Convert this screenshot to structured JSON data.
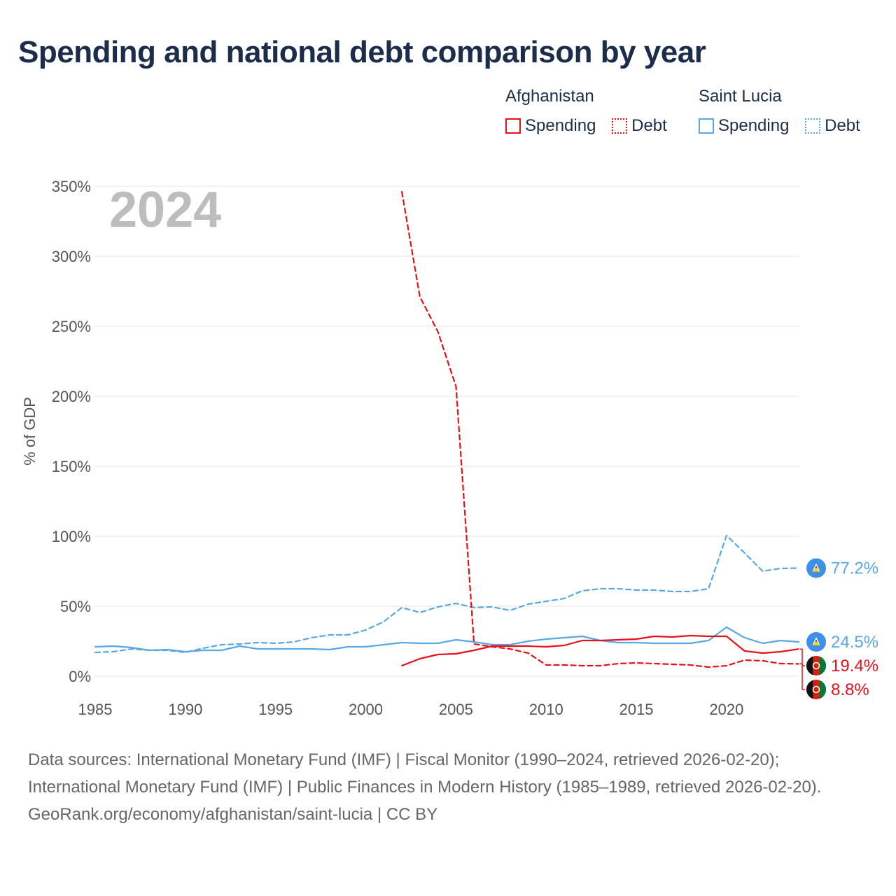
{
  "title": "Spending and national debt comparison by year",
  "legend": [
    {
      "country": "Afghanistan",
      "color": "#e8101b",
      "items": [
        {
          "label": "Spending",
          "style": "solid"
        },
        {
          "label": "Debt",
          "style": "dotted"
        }
      ]
    },
    {
      "country": "Saint Lucia",
      "color": "#5aa7e6",
      "items": [
        {
          "label": "Spending",
          "style": "solid"
        },
        {
          "label": "Debt",
          "style": "dotted"
        }
      ]
    }
  ],
  "chart_data": {
    "type": "line",
    "title": "Spending and national debt comparison by year",
    "year_watermark": "2024",
    "xlabel": "",
    "ylabel": "% of GDP",
    "xlim": [
      1985,
      2024
    ],
    "ylim": [
      0,
      350
    ],
    "x_ticks": [
      1985,
      1990,
      1995,
      2000,
      2005,
      2010,
      2015,
      2020
    ],
    "y_ticks": [
      0,
      50,
      100,
      150,
      200,
      250,
      300,
      350
    ],
    "y_tick_labels": [
      "0%",
      "50%",
      "100%",
      "150%",
      "200%",
      "250%",
      "300%",
      "350%"
    ],
    "series": [
      {
        "name": "Saint Lucia Debt",
        "color": "#5aa7e6",
        "dashed": true,
        "x": [
          1985,
          1986,
          1987,
          1988,
          1989,
          1990,
          1991,
          1992,
          1993,
          1994,
          1995,
          1996,
          1997,
          1998,
          1999,
          2000,
          2001,
          2002,
          2003,
          2004,
          2005,
          2006,
          2007,
          2008,
          2009,
          2010,
          2011,
          2012,
          2013,
          2014,
          2015,
          2016,
          2017,
          2018,
          2019,
          2020,
          2021,
          2022,
          2023,
          2024
        ],
        "values": [
          17,
          17.5,
          19.5,
          18.5,
          18.5,
          17,
          20,
          22.5,
          23,
          24,
          23.5,
          24.5,
          27.5,
          29.5,
          29.5,
          33,
          39,
          49,
          45.5,
          49.5,
          52,
          49,
          49.5,
          47,
          51.5,
          53.5,
          55.5,
          61,
          62.5,
          62.5,
          61.5,
          61.5,
          60.5,
          60.5,
          62.5,
          100.5,
          88,
          75,
          77,
          77.2
        ],
        "end_label": "77.2%"
      },
      {
        "name": "Saint Lucia Spending",
        "color": "#5aa7e6",
        "dashed": false,
        "x": [
          1985,
          1986,
          1987,
          1988,
          1989,
          1990,
          1991,
          1992,
          1993,
          1994,
          1995,
          1996,
          1997,
          1998,
          1999,
          2000,
          2001,
          2002,
          2003,
          2004,
          2005,
          2006,
          2007,
          2008,
          2009,
          2010,
          2011,
          2012,
          2013,
          2014,
          2015,
          2016,
          2017,
          2018,
          2019,
          2020,
          2021,
          2022,
          2023,
          2024
        ],
        "values": [
          21,
          21.5,
          20.5,
          18.5,
          19,
          17.5,
          18.5,
          18.5,
          21.5,
          19.5,
          19.5,
          19.5,
          19.5,
          19,
          21,
          21,
          22.5,
          24,
          23.5,
          23.5,
          26,
          24.5,
          22.5,
          22.5,
          25,
          26.5,
          27.5,
          28.5,
          25.5,
          24,
          24,
          23.5,
          23.5,
          23.5,
          25.5,
          35,
          27.5,
          23.5,
          25.5,
          24.5
        ],
        "end_label": "24.5%"
      },
      {
        "name": "Afghanistan Spending",
        "color": "#e8101b",
        "dashed": false,
        "x": [
          2002,
          2003,
          2004,
          2005,
          2006,
          2007,
          2008,
          2009,
          2010,
          2011,
          2012,
          2013,
          2014,
          2015,
          2016,
          2017,
          2018,
          2019,
          2020,
          2021,
          2022,
          2023,
          2024
        ],
        "values": [
          7.5,
          12.5,
          15.5,
          16,
          18.5,
          21.5,
          21.5,
          21.5,
          21,
          22,
          25.5,
          25.5,
          26,
          26.5,
          28.5,
          28,
          29,
          28.5,
          28.5,
          18,
          16.5,
          17.5,
          19.4
        ],
        "end_label": "19.4%"
      },
      {
        "name": "Afghanistan Debt",
        "color": "#e8101b",
        "dashed": true,
        "x": [
          2002,
          2003,
          2004,
          2005,
          2006,
          2007,
          2008,
          2009,
          2010,
          2011,
          2012,
          2013,
          2014,
          2015,
          2016,
          2017,
          2018,
          2019,
          2020,
          2021,
          2022,
          2023,
          2024
        ],
        "values": [
          346,
          271,
          246,
          207,
          23,
          21,
          19.5,
          16.5,
          8,
          8,
          7.5,
          7.5,
          9,
          9.5,
          9,
          8.5,
          8,
          6.5,
          7.5,
          11.5,
          11,
          9,
          8.8
        ],
        "end_label": "8.8%"
      }
    ]
  },
  "footer": {
    "sources": "Data sources: International Monetary Fund (IMF) | Fiscal Monitor (1990–2024, retrieved 2026-02-20); International Monetary Fund (IMF) | Public Finances in Modern History (1985–1989, retrieved 2026-02-20).",
    "attribution": "GeoRank.org/economy/afghanistan/saint-lucia | CC BY"
  }
}
